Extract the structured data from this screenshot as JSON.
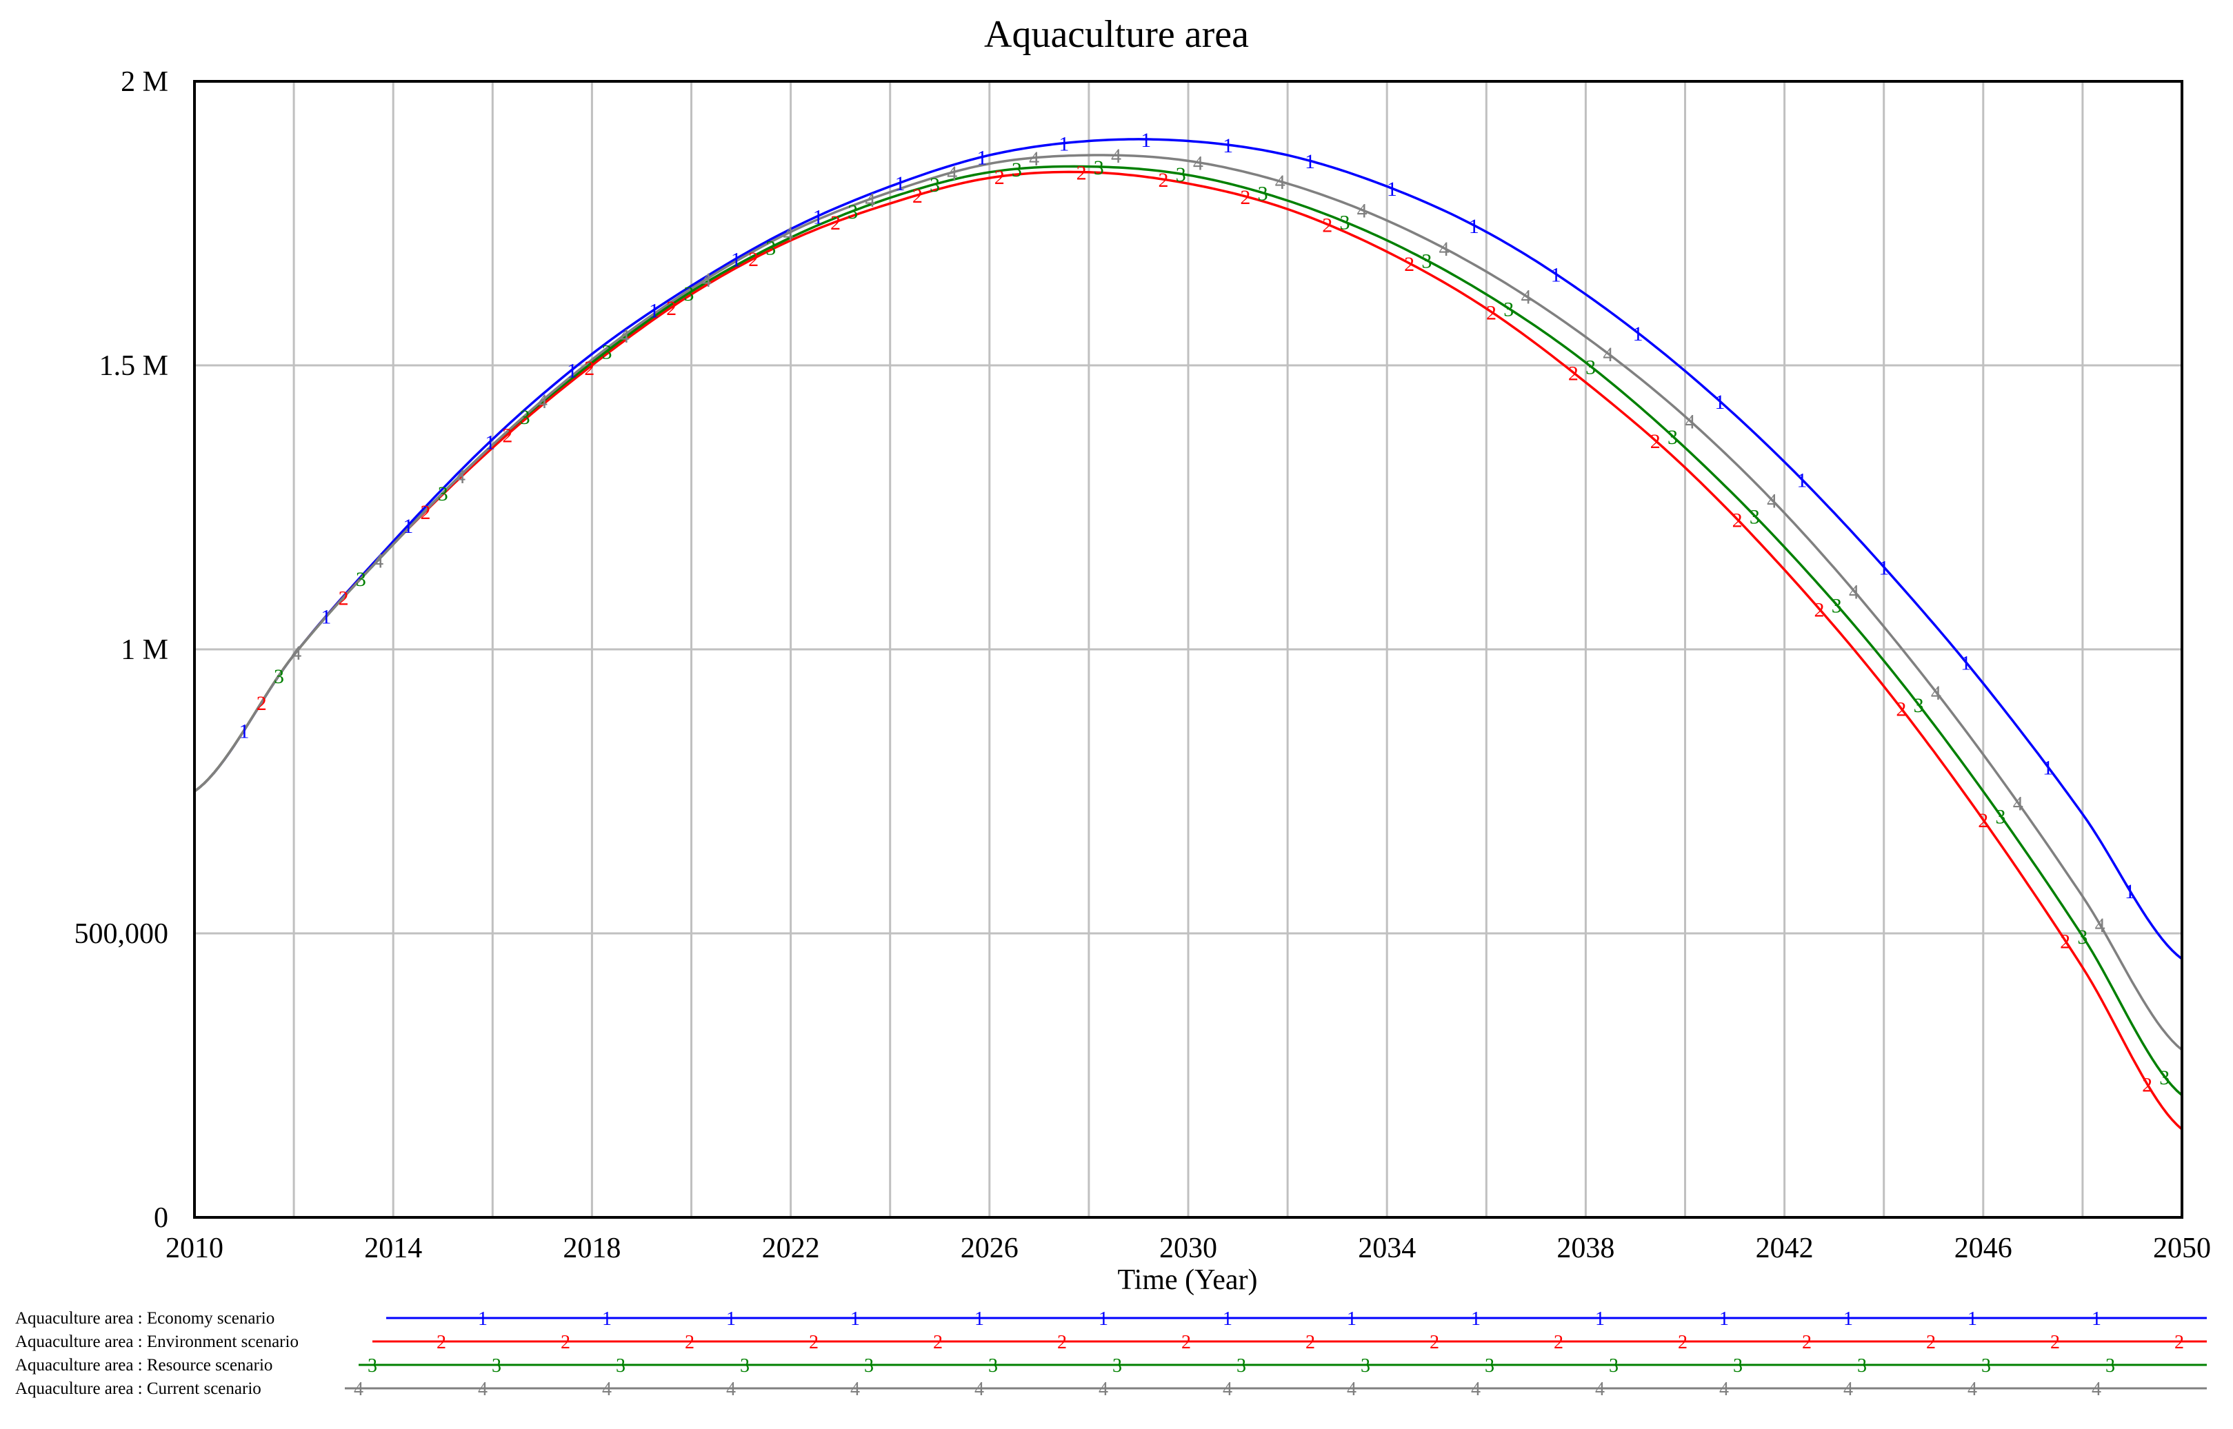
{
  "chart_data": {
    "type": "line",
    "title": "Aquaculture area",
    "xlabel": "Time (Year)",
    "ylabel": "",
    "xlim": [
      2010,
      2050
    ],
    "ylim": [
      0,
      2000000
    ],
    "grid": true,
    "legend_position": "bottom",
    "x_ticks": [
      "2010",
      "2014",
      "2018",
      "2022",
      "2026",
      "2030",
      "2034",
      "2038",
      "2042",
      "2046",
      "2050"
    ],
    "y_ticks": [
      {
        "value": 0,
        "label": "0"
      },
      {
        "value": 500000,
        "label": "500,000"
      },
      {
        "value": 1000000,
        "label": "1 M"
      },
      {
        "value": 1500000,
        "label": "1.5 M"
      },
      {
        "value": 2000000,
        "label": "2 M"
      }
    ],
    "x": [
      2010,
      2012,
      2014,
      2016,
      2018,
      2020,
      2022,
      2024,
      2026,
      2028,
      2030,
      2032,
      2034,
      2036,
      2038,
      2040,
      2042,
      2044,
      2046,
      2048,
      2050
    ],
    "series": [
      {
        "name": "Aquaculture area : Economy scenario",
        "marker": "1",
        "color": "#0000ff",
        "values": [
          750000,
          990000,
          1190000,
          1370000,
          1520000,
          1640000,
          1740000,
          1815000,
          1870000,
          1895000,
          1895000,
          1870000,
          1815000,
          1735000,
          1625000,
          1490000,
          1330000,
          1145000,
          940000,
          710000,
          455000
        ]
      },
      {
        "name": "Aquaculture area : Environment scenario",
        "marker": "2",
        "color": "#ff0000",
        "values": [
          750000,
          990000,
          1185000,
          1355000,
          1500000,
          1625000,
          1720000,
          1785000,
          1830000,
          1840000,
          1820000,
          1775000,
          1700000,
          1600000,
          1470000,
          1320000,
          1140000,
          935000,
          700000,
          440000,
          155000
        ]
      },
      {
        "name": "Aquaculture area : Resource scenario",
        "marker": "3",
        "color": "#008000",
        "values": [
          750000,
          990000,
          1185000,
          1360000,
          1505000,
          1630000,
          1725000,
          1795000,
          1840000,
          1850000,
          1835000,
          1790000,
          1720000,
          1625000,
          1505000,
          1355000,
          1180000,
          980000,
          750000,
          495000,
          215000
        ]
      },
      {
        "name": "Aquaculture area : Current scenario",
        "marker": "4",
        "color": "#808080",
        "values": [
          750000,
          990000,
          1185000,
          1360000,
          1510000,
          1635000,
          1735000,
          1805000,
          1855000,
          1870000,
          1860000,
          1820000,
          1755000,
          1665000,
          1550000,
          1410000,
          1240000,
          1040000,
          815000,
          565000,
          295000
        ]
      }
    ]
  }
}
